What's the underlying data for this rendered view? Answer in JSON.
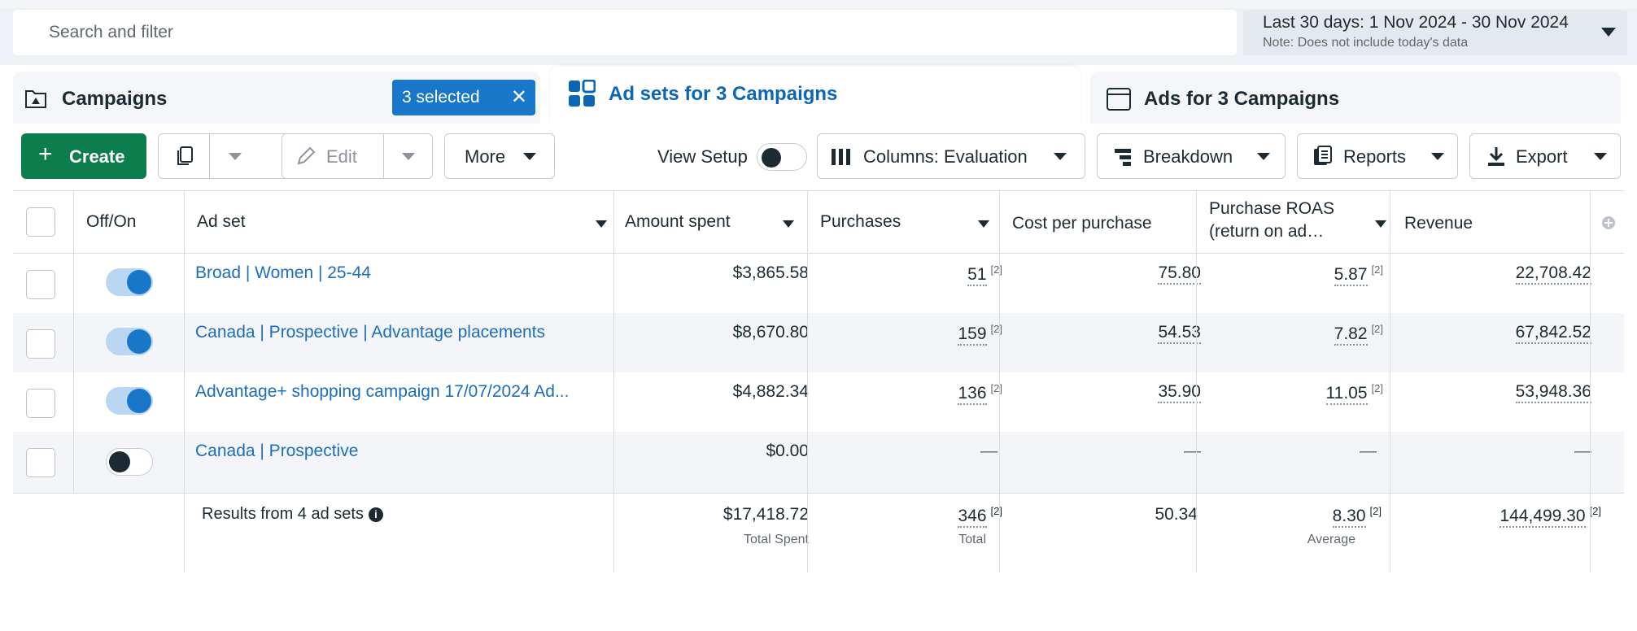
{
  "search": {
    "placeholder": "Search and filter"
  },
  "date_range": {
    "label": "Last 30 days: 1 Nov 2024 - 30 Nov 2024",
    "note": "Note: Does not include today's data"
  },
  "tabs": {
    "campaigns": {
      "label": "Campaigns",
      "selected_label": "3 selected"
    },
    "adsets": {
      "label": "Ad sets for 3 Campaigns"
    },
    "ads": {
      "label": "Ads for 3 Campaigns"
    }
  },
  "toolbar": {
    "create": "Create",
    "edit": "Edit",
    "more": "More",
    "view_setup": "View Setup",
    "columns": "Columns: Evaluation",
    "breakdown": "Breakdown",
    "reports": "Reports",
    "export": "Export"
  },
  "columns": {
    "offon": "Off/On",
    "adset": "Ad set",
    "amount": "Amount spent",
    "purchases": "Purchases",
    "cpp": "Cost per purchase",
    "roas_1": "Purchase ROAS",
    "roas_2": "(return on ad…",
    "revenue": "Revenue"
  },
  "rows": [
    {
      "name": "Broad | Women | 25-44",
      "on": true,
      "amount": "$3,865.58",
      "purchases": "51",
      "cpp": "75.80",
      "roas": "5.87",
      "revenue": "22,708.42",
      "sup": "[2]"
    },
    {
      "name": "Canada | Prospective | Advantage placements",
      "on": true,
      "amount": "$8,670.80",
      "purchases": "159",
      "cpp": "54.53",
      "roas": "7.82",
      "revenue": "67,842.52",
      "sup": "[2]"
    },
    {
      "name": "Advantage+ shopping campaign 17/07/2024 Ad...",
      "on": true,
      "amount": "$4,882.34",
      "purchases": "136",
      "cpp": "35.90",
      "roas": "11.05",
      "revenue": "53,948.36",
      "sup": "[2]"
    },
    {
      "name": "Canada | Prospective",
      "on": false,
      "amount": "$0.00",
      "purchases": "—",
      "cpp": "—",
      "roas": "—",
      "revenue": "—"
    }
  ],
  "totals": {
    "label": "Results from 4 ad sets",
    "amount": "$17,418.72",
    "amount_sub": "Total Spent",
    "purchases": "346",
    "purchases_sub": "Total",
    "cpp": "50.34",
    "roas": "8.30",
    "roas_sub": "Average",
    "revenue": "144,499.30",
    "sup": "[2]"
  },
  "colors": {
    "accent_blue": "#1877c9",
    "create_green": "#0c7d4c",
    "link_blue": "#1a6ebd"
  }
}
